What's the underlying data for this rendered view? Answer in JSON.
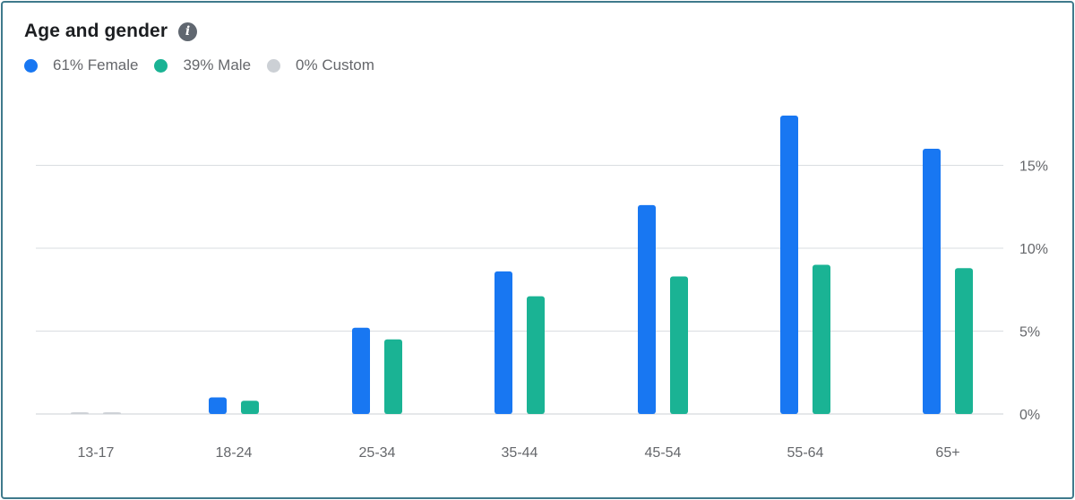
{
  "header": {
    "title": "Age and gender",
    "info_icon": "info-icon"
  },
  "legend": [
    {
      "label": "61% Female",
      "color": "#1877f2"
    },
    {
      "label": "39% Male",
      "color": "#1ab394"
    },
    {
      "label": "0% Custom",
      "color": "#ccd0d5"
    }
  ],
  "chart_data": {
    "type": "bar",
    "categories": [
      "13-17",
      "18-24",
      "25-34",
      "35-44",
      "45-54",
      "55-64",
      "65+"
    ],
    "series": [
      {
        "name": "61% Female",
        "color": "#1877f2",
        "values": [
          0.1,
          1.0,
          5.2,
          8.6,
          12.6,
          18.0,
          16.0
        ]
      },
      {
        "name": "39% Male",
        "color": "#1ab394",
        "values": [
          0.1,
          0.8,
          4.5,
          7.1,
          8.3,
          9.0,
          8.8
        ]
      }
    ],
    "y_ticks": [
      {
        "value": 0,
        "label": "0%"
      },
      {
        "value": 5,
        "label": "5%"
      },
      {
        "value": 10,
        "label": "10%"
      },
      {
        "value": 15,
        "label": "15%"
      }
    ],
    "ylim": [
      0,
      19
    ],
    "y_axis_side": "right",
    "grid": true
  }
}
